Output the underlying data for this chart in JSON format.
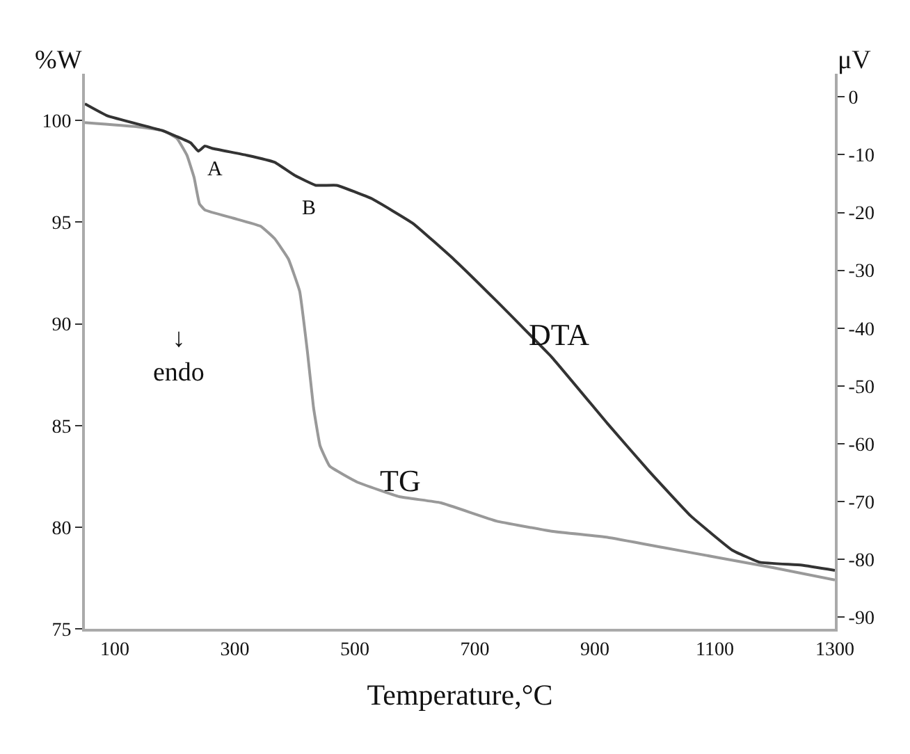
{
  "chart_data": {
    "type": "line",
    "xlabel": "Temperature,°C",
    "ylabel": "%W",
    "y2label": "μV",
    "xlim": [
      50,
      1300
    ],
    "xticks": [
      100,
      300,
      500,
      700,
      900,
      1100,
      1300
    ],
    "ylim": [
      75,
      102.3
    ],
    "yticks": [
      75,
      80,
      85,
      90,
      95,
      100
    ],
    "y2lim": [
      -92,
      4
    ],
    "y2ticks": [
      0,
      -10,
      -20,
      -30,
      -40,
      -50,
      -60,
      -70,
      -80,
      -90
    ],
    "marker": "none",
    "line_style": "solid",
    "series": [
      {
        "color": "#333333",
        "axis": "y2",
        "x": [
          50,
          88,
          181,
          227,
          239,
          250,
          262,
          320,
          366,
          400,
          435,
          470,
          528,
          597,
          666,
          736,
          828,
          921,
          990,
          1060,
          1129,
          1175,
          1245,
          1300
        ],
        "values": [
          -1.2,
          -3.3,
          -5.9,
          -8,
          -9.4,
          -8.5,
          -8.9,
          -10.1,
          -11.3,
          -13.6,
          -15.3,
          -15.3,
          -17.6,
          -21.9,
          -28.2,
          -35.3,
          -45,
          -56.5,
          -64.7,
          -72.5,
          -78.4,
          -80.5,
          -81,
          -81.9
        ]
      },
      {
        "color": "#999999",
        "x": [
          50,
          135,
          181,
          204,
          220,
          232,
          241,
          250,
          297,
          343,
          366,
          389,
          408,
          421,
          431,
          442,
          458,
          505,
          574,
          643,
          736,
          828,
          921,
          1013,
          1106,
          1198,
          1300
        ],
        "values": [
          99.9,
          99.7,
          99.5,
          99.1,
          98.3,
          97.2,
          95.9,
          95.6,
          95.2,
          94.8,
          94.2,
          93.2,
          91.6,
          88.6,
          85.9,
          84,
          83,
          82.2,
          81.5,
          81.2,
          80.3,
          79.8,
          79.5,
          79,
          78.5,
          78,
          77.4
        ]
      }
    ],
    "annotations": [
      "A",
      "B",
      "DTA",
      "TG",
      "↓\nendo"
    ]
  }
}
